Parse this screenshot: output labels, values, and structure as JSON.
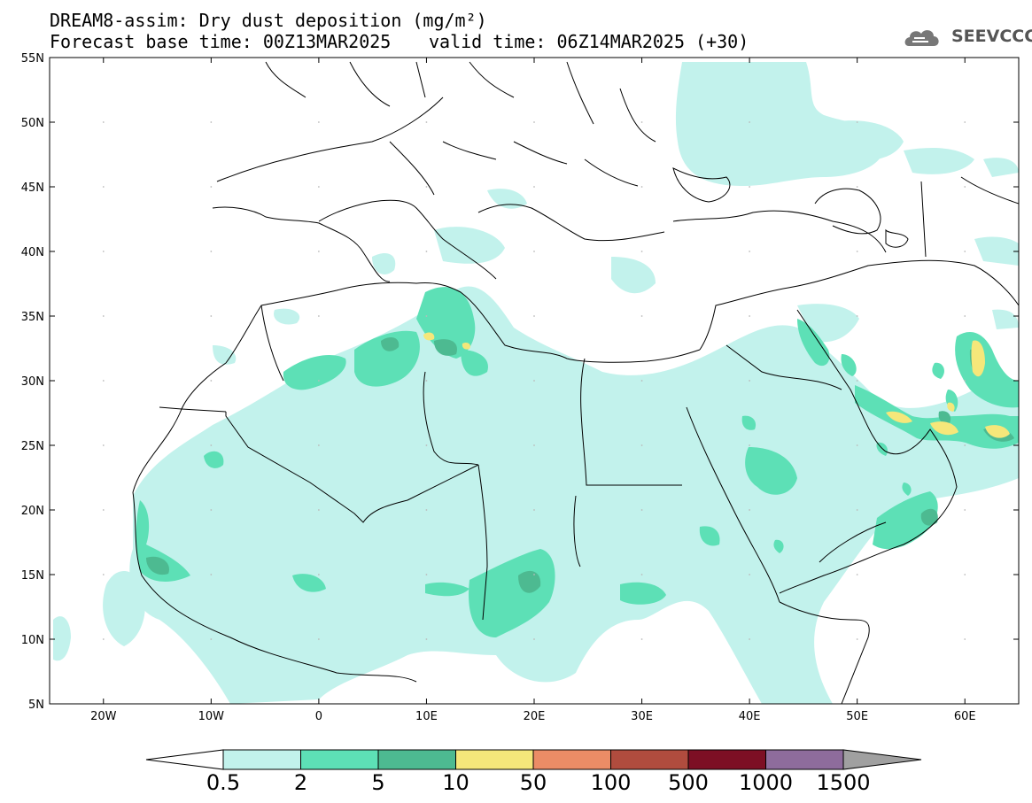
{
  "header": {
    "title": "DREAM8-assim: Dry dust deposition (mg/m²)",
    "forecast_base": "Forecast base time: 00Z13MAR2025",
    "valid_time": "valid time: 06Z14MAR2025 (+30)"
  },
  "logo": {
    "text": "SEEVCCC",
    "icon": "cloud-logo-icon"
  },
  "map": {
    "lon_range": [
      -25,
      65
    ],
    "lat_range": [
      5,
      55
    ],
    "lat_labels": [
      "55N",
      "50N",
      "45N",
      "40N",
      "35N",
      "30N",
      "25N",
      "20N",
      "15N",
      "10N",
      "5N"
    ],
    "lon_labels": [
      "20W",
      "10W",
      "0",
      "10E",
      "20E",
      "30E",
      "40E",
      "50E",
      "60E"
    ]
  },
  "colorbar": {
    "labels": [
      "0.5",
      "2",
      "5",
      "10",
      "50",
      "100",
      "500",
      "1000",
      "1500"
    ],
    "colors": [
      "#c2f2ec",
      "#5de0b6",
      "#4dba91",
      "#f5e77a",
      "#eb8c66",
      "#b04c3e",
      "#7d0f24",
      "#8e6c9c"
    ],
    "under_color": "#ffffff",
    "over_color": "#a0a0a0"
  },
  "colors": {
    "lev1": "#c2f2ec",
    "lev2": "#5de0b6",
    "lev3": "#4dba91",
    "lev4": "#f5e77a"
  }
}
